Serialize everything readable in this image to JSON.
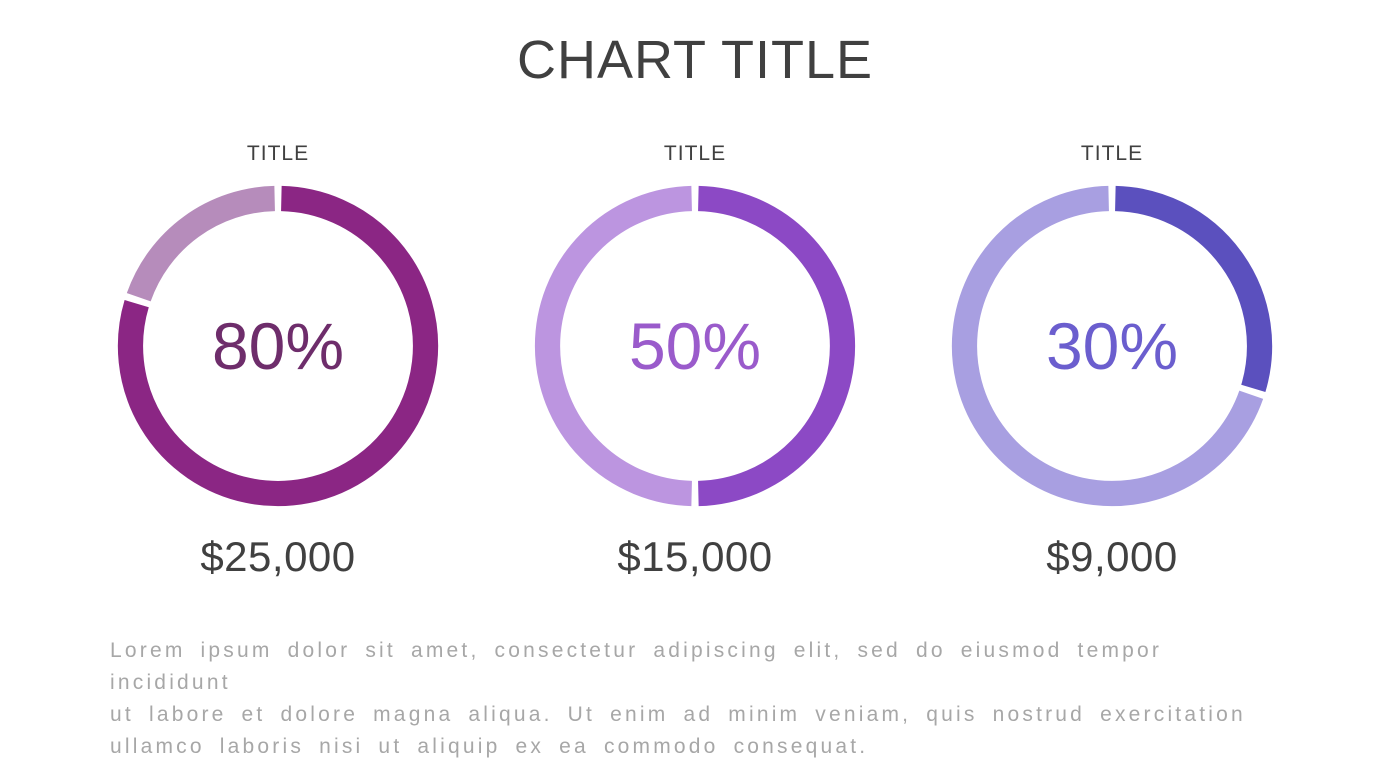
{
  "title": "CHART TITLE",
  "description": [
    "Lorem ipsum dolor sit amet, consectetur adipiscing elit, sed do eiusmod tempor incididunt",
    "ut labore et dolore magna aliqua. Ut enim ad minim veniam, quis nostrud exercitation",
    "ullamco laboris nisi ut aliquip ex ea commodo consequat."
  ],
  "colors": {
    "heading_text": "#404040",
    "value_text": "#404040",
    "description_text": "#a7a7a7",
    "background": "#ffffff"
  },
  "chart_data": {
    "type": "pie",
    "subtype": "donut-progress-rings",
    "title": "CHART TITLE",
    "legend_position": "none",
    "items": [
      {
        "title": "TITLE",
        "percent": 80,
        "percent_label": "80%",
        "value": "$25,000",
        "filled_color": "#8B2684",
        "remainder_color": "#B68CBB",
        "percent_text_color": "#6E2D6B"
      },
      {
        "title": "TITLE",
        "percent": 50,
        "percent_label": "50%",
        "value": "$15,000",
        "filled_color": "#8C49C5",
        "remainder_color": "#BC95E0",
        "percent_text_color": "#9A5BCB"
      },
      {
        "title": "TITLE",
        "percent": 30,
        "percent_label": "30%",
        "value": "$9,000",
        "filled_color": "#5B50BE",
        "remainder_color": "#A89FE1",
        "percent_text_color": "#6B5ECE"
      }
    ]
  }
}
